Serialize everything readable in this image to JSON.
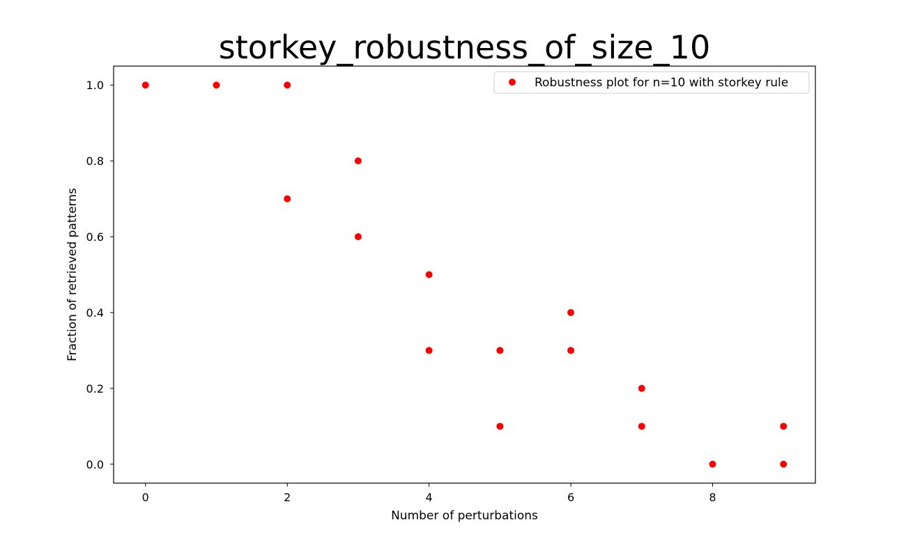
{
  "chart_data": {
    "type": "scatter",
    "title": "storkey_robustness_of_size_10",
    "xlabel": "Number of perturbations",
    "ylabel": "Fraction of retrieved patterns",
    "xlim": [
      -0.45,
      9.45
    ],
    "ylim": [
      -0.05,
      1.05
    ],
    "xticks": [
      0,
      2,
      4,
      6,
      8
    ],
    "yticks": [
      0.0,
      0.2,
      0.4,
      0.6,
      0.8,
      1.0
    ],
    "xtick_labels": [
      "0",
      "2",
      "4",
      "6",
      "8"
    ],
    "ytick_labels": [
      "0.0",
      "0.2",
      "0.4",
      "0.6",
      "0.8",
      "1.0"
    ],
    "grid": false,
    "legend_position": "top-right",
    "series": [
      {
        "name": "Robustness plot for n=10 with storkey rule",
        "color": "#ff0000",
        "marker": "circle",
        "points": [
          {
            "x": 0,
            "y": 1.0
          },
          {
            "x": 1,
            "y": 1.0
          },
          {
            "x": 2,
            "y": 1.0
          },
          {
            "x": 2,
            "y": 0.7
          },
          {
            "x": 3,
            "y": 0.8
          },
          {
            "x": 3,
            "y": 0.6
          },
          {
            "x": 4,
            "y": 0.5
          },
          {
            "x": 4,
            "y": 0.3
          },
          {
            "x": 5,
            "y": 0.3
          },
          {
            "x": 5,
            "y": 0.1
          },
          {
            "x": 6,
            "y": 0.4
          },
          {
            "x": 6,
            "y": 0.3
          },
          {
            "x": 7,
            "y": 0.2
          },
          {
            "x": 7,
            "y": 0.1
          },
          {
            "x": 8,
            "y": 0.0
          },
          {
            "x": 9,
            "y": 0.1
          },
          {
            "x": 9,
            "y": 0.0
          }
        ]
      }
    ]
  }
}
